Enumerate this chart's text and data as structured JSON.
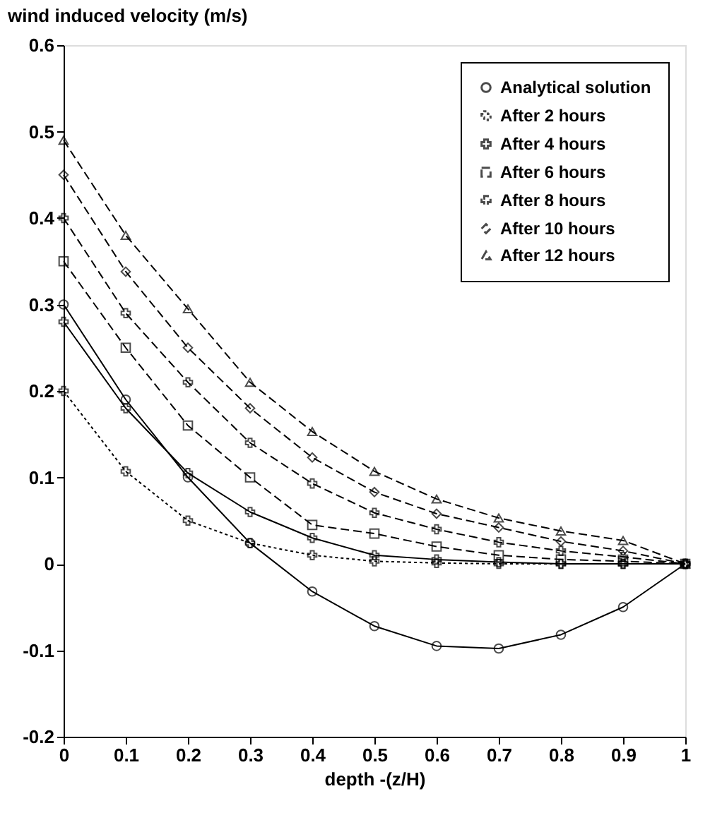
{
  "chart_data": {
    "type": "line",
    "ylabel": "wind induced velocity (m/s)",
    "xlabel": "depth  -(z/H)",
    "x": [
      0,
      0.1,
      0.2,
      0.3,
      0.4,
      0.5,
      0.6,
      0.7,
      0.8,
      0.9,
      1
    ],
    "series": [
      {
        "name": "Analytical solution",
        "color": "#000000",
        "marker": "circle",
        "line_style": "solid",
        "values": [
          0.3,
          0.19,
          0.1,
          0.024,
          -0.032,
          -0.072,
          -0.095,
          -0.098,
          -0.082,
          -0.05,
          0
        ]
      },
      {
        "name": "After 2 hours",
        "color": "#000000",
        "marker": "cross",
        "line_style": "dotted",
        "values": [
          0.2,
          0.107,
          0.05,
          0.024,
          0.01,
          0.003,
          0.001,
          0,
          0,
          0,
          0
        ]
      },
      {
        "name": "After 4 hours",
        "color": "#000000",
        "marker": "cross",
        "line_style": "solid",
        "values": [
          0.28,
          0.18,
          0.105,
          0.06,
          0.03,
          0.01,
          0.005,
          0.002,
          0,
          0,
          0
        ]
      },
      {
        "name": "After 6 hours",
        "color": "#000000",
        "marker": "square",
        "line_style": "dashed",
        "values": [
          0.35,
          0.25,
          0.16,
          0.1,
          0.045,
          0.035,
          0.02,
          0.01,
          0.005,
          0.003,
          0
        ]
      },
      {
        "name": "After 8 hours",
        "color": "#000000",
        "marker": "cross",
        "line_style": "dashed",
        "values": [
          0.4,
          0.29,
          0.21,
          0.14,
          0.093,
          0.059,
          0.04,
          0.025,
          0.015,
          0.008,
          0
        ]
      },
      {
        "name": "After 10 hours",
        "color": "#000000",
        "marker": "diamond",
        "line_style": "dashed",
        "values": [
          0.45,
          0.338,
          0.25,
          0.18,
          0.123,
          0.083,
          0.058,
          0.042,
          0.026,
          0.015,
          0
        ]
      },
      {
        "name": "After 12 hours",
        "color": "#000000",
        "marker": "triangle",
        "line_style": "dashed",
        "values": [
          0.49,
          0.38,
          0.295,
          0.21,
          0.153,
          0.107,
          0.075,
          0.053,
          0.038,
          0.027,
          0
        ]
      }
    ],
    "xlim": [
      0,
      1
    ],
    "xticks": [
      0,
      0.1,
      0.2,
      0.3,
      0.4,
      0.5,
      0.6,
      0.7,
      0.8,
      0.9,
      1
    ],
    "ylim": [
      -0.2,
      0.6
    ],
    "yticks": [
      -0.2,
      -0.1,
      0,
      0.1,
      0.2,
      0.3,
      0.4,
      0.5,
      0.6
    ],
    "grid": false,
    "legend": "top right"
  }
}
